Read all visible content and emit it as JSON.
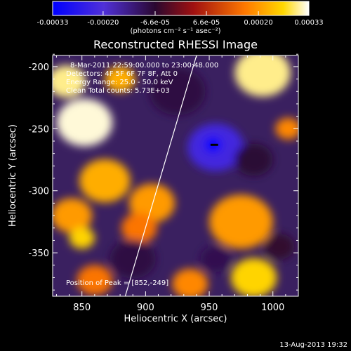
{
  "chart_data": {
    "type": "heatmap",
    "title": "Reconstructed RHESSI Image",
    "xlabel": "Heliocentric X (arcsec)",
    "ylabel": "Heliocentric Y (arcsec)",
    "xlim": [
      827,
      1020
    ],
    "ylim": [
      -385,
      -191
    ],
    "x_ticks": [
      850,
      900,
      950,
      1000
    ],
    "y_ticks": [
      -200,
      -250,
      -300,
      -350
    ],
    "colorbar": {
      "ticks": [
        "-0.00033",
        "-0.00020",
        "-6.6e-05",
        "6.6e-05",
        "0.00020",
        "0.00033"
      ],
      "tick_values": [
        -0.00033,
        -0.0002,
        -6.6e-05,
        6.6e-05,
        0.0002,
        0.00033
      ],
      "range": [
        -0.00033,
        0.00033
      ],
      "label": "(photons cm⁻² s⁻¹ asec⁻²)",
      "colors": [
        "#0000ff",
        "#6a2fc8",
        "#8c1a20",
        "#ff6a00",
        "#ffd400",
        "#ffffff"
      ]
    },
    "annotations": [
      "8-Mar-2011 22:59:00.000 to 23:00:48.000",
      "Detectors: 4F 5F 6F 7F 8F, Att 0",
      "Energy Range: 25.0 - 50.0 keV",
      "Clean    Total counts: 5.73E+03"
    ],
    "peak_label": "Position of Peak = [852,-249]",
    "peak": [
      852,
      -249
    ],
    "limb_curve": [
      [
        884,
        -385
      ],
      [
        900,
        -330
      ],
      [
        920,
        -260
      ],
      [
        940,
        -191
      ]
    ],
    "blobs": [
      {
        "x": 852,
        "y": -245,
        "r": 22,
        "v": 0.00032
      },
      {
        "x": 838,
        "y": -212,
        "r": 15,
        "v": 0.0003
      },
      {
        "x": 880,
        "y": -210,
        "r": 12,
        "v": 0.00022
      },
      {
        "x": 992,
        "y": -205,
        "r": 22,
        "v": 0.0003
      },
      {
        "x": 1012,
        "y": -250,
        "r": 10,
        "v": 0.00018
      },
      {
        "x": 868,
        "y": -292,
        "r": 20,
        "v": 0.00022
      },
      {
        "x": 905,
        "y": -310,
        "r": 18,
        "v": 0.0002
      },
      {
        "x": 895,
        "y": -330,
        "r": 14,
        "v": 0.00016
      },
      {
        "x": 842,
        "y": -320,
        "r": 16,
        "v": 0.0002
      },
      {
        "x": 850,
        "y": -338,
        "r": 10,
        "v": 0.00026
      },
      {
        "x": 975,
        "y": -325,
        "r": 25,
        "v": 0.0002
      },
      {
        "x": 935,
        "y": -375,
        "r": 14,
        "v": 0.00018
      },
      {
        "x": 985,
        "y": -370,
        "r": 18,
        "v": 0.00026
      },
      {
        "x": 860,
        "y": -372,
        "r": 14,
        "v": 0.00016
      },
      {
        "x": 955,
        "y": -265,
        "r": 22,
        "v": -0.00022
      },
      {
        "x": 953,
        "y": -263,
        "r": 7,
        "v": -0.00033
      },
      {
        "x": 925,
        "y": -220,
        "r": 22,
        "v": -8e-05
      },
      {
        "x": 985,
        "y": -275,
        "r": 15,
        "v": -7e-05
      },
      {
        "x": 890,
        "y": -355,
        "r": 18,
        "v": -8e-05
      },
      {
        "x": 955,
        "y": -355,
        "r": 12,
        "v": -9e-05
      },
      {
        "x": 1005,
        "y": -345,
        "r": 12,
        "v": -6e-05
      }
    ]
  },
  "footer": {
    "date": "13-Aug-2013 19:32"
  }
}
